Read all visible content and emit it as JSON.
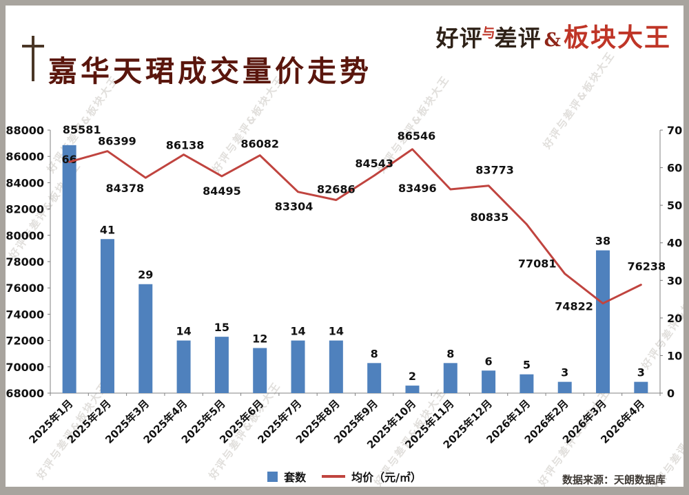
{
  "header": {
    "title": "嘉华天珺成交量价走势",
    "logo": {
      "part1": "好评",
      "part2": "与",
      "part3": "差评",
      "part4": "&",
      "part5": "板块大王"
    }
  },
  "watermark": {
    "text": "好评与差评&板块大王"
  },
  "legend": {
    "bars": "套数",
    "line": "均价（元/㎡）"
  },
  "source": "数据来源：天朗数据库",
  "theme": {
    "frame_color": "#a8a49e",
    "title_color": "#5a160d",
    "brand_dark": "#2f2218",
    "brand_red": "#bf3527",
    "bar_color": "#4f81bd",
    "line_color": "#c0443f"
  },
  "chart_data": {
    "type": "bar",
    "subtype": "combo bar+line, dual axis",
    "title": "嘉华天珺成交量价走势",
    "categories": [
      "2025年1月",
      "2025年2月",
      "2025年3月",
      "2025年4月",
      "2025年5月",
      "2025年6月",
      "2025年7月",
      "2025年8月",
      "2025年9月",
      "2025年10月",
      "2025年11月",
      "2025年12月",
      "2026年1月",
      "2026年2月",
      "2026年3月",
      "2026年4月"
    ],
    "series": [
      {
        "name": "套数",
        "type": "bar",
        "axis": "right",
        "color": "#4f81bd",
        "values": [
          66,
          41,
          29,
          14,
          15,
          12,
          14,
          14,
          8,
          2,
          8,
          6,
          5,
          3,
          38,
          3
        ]
      },
      {
        "name": "均价（元/㎡）",
        "type": "line",
        "axis": "left",
        "color": "#c0443f",
        "values": [
          85581,
          86399,
          84378,
          86138,
          84495,
          86082,
          83304,
          82686,
          84543,
          86546,
          83496,
          83773,
          80835,
          77081,
          74822,
          76238
        ]
      }
    ],
    "left_axis": {
      "min": 68000,
      "max": 88000,
      "step": 2000
    },
    "right_axis": {
      "min": 0,
      "max": 70,
      "step": 10
    },
    "grid": false,
    "legend_position": "bottom-center"
  }
}
